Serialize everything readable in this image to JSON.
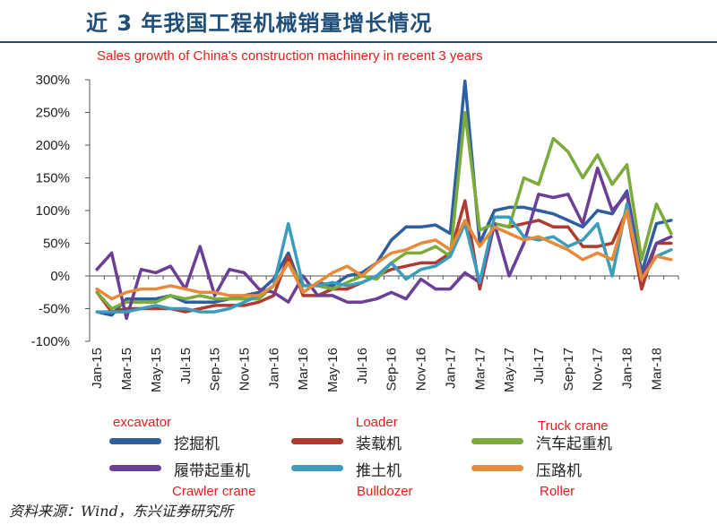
{
  "title": "近 3 年我国工程机械销量增长情况",
  "source": "资料来源：Wind，东兴证券研究所",
  "chart_data": {
    "type": "line",
    "subtitle": "Sales growth of China's construction machinery in recent 3 years",
    "ylim": [
      -100,
      300
    ],
    "yticks": [
      "-100%",
      "-50%",
      "0%",
      "50%",
      "100%",
      "150%",
      "200%",
      "250%",
      "300%"
    ],
    "ytick_values": [
      -100,
      -50,
      0,
      50,
      100,
      150,
      200,
      250,
      300
    ],
    "x": [
      "Jan-15",
      "Feb-15",
      "Mar-15",
      "Apr-15",
      "May-15",
      "Jun-15",
      "Jul-15",
      "Aug-15",
      "Sep-15",
      "Oct-15",
      "Nov-15",
      "Dec-15",
      "Jan-16",
      "Feb-16",
      "Mar-16",
      "Apr-16",
      "May-16",
      "Jun-16",
      "Jul-16",
      "Aug-16",
      "Sep-16",
      "Oct-16",
      "Nov-16",
      "Dec-16",
      "Jan-17",
      "Feb-17",
      "Mar-17",
      "Apr-17",
      "May-17",
      "Jun-17",
      "Jul-17",
      "Aug-17",
      "Sep-17",
      "Oct-17",
      "Nov-17",
      "Dec-17",
      "Jan-18",
      "Feb-18",
      "Mar-18",
      "Apr-18"
    ],
    "xtick_labels": [
      "Jan-15",
      "Mar-15",
      "May-15",
      "Jul-15",
      "Sep-15",
      "Nov-15",
      "Jan-16",
      "Mar-16",
      "May-16",
      "Jul-16",
      "Sep-16",
      "Nov-16",
      "Jan-17",
      "Mar-17",
      "May-17",
      "Jul-17",
      "Sep-17",
      "Nov-17",
      "Jan-18",
      "Mar-18"
    ],
    "legend_position": "bottom",
    "grid": false,
    "series": [
      {
        "name": "挖掘机",
        "name_en": "excavator",
        "color": "#2e5f9e",
        "values": [
          -55,
          -60,
          -35,
          -35,
          -35,
          -30,
          -40,
          -40,
          -40,
          -35,
          -30,
          -25,
          -5,
          35,
          -25,
          -10,
          -15,
          0,
          5,
          20,
          55,
          75,
          75,
          78,
          65,
          298,
          50,
          100,
          105,
          105,
          100,
          95,
          85,
          75,
          100,
          95,
          130,
          5,
          80,
          85
        ]
      },
      {
        "name": "装载机",
        "name_en": "Loader",
        "color": "#b03a2e",
        "values": [
          -25,
          -55,
          -50,
          -50,
          -50,
          -50,
          -55,
          -50,
          -45,
          -45,
          -45,
          -40,
          -30,
          30,
          -30,
          -30,
          -20,
          -20,
          -10,
          0,
          10,
          15,
          20,
          20,
          35,
          115,
          -20,
          80,
          75,
          80,
          85,
          75,
          75,
          45,
          45,
          50,
          100,
          -20,
          50,
          50
        ]
      },
      {
        "name": "汽车起重机",
        "name_en": "Truck crane",
        "color": "#7bab3b",
        "values": [
          -25,
          -50,
          -40,
          -40,
          -40,
          -30,
          -35,
          -30,
          -35,
          -35,
          -35,
          -35,
          -15,
          20,
          -15,
          -15,
          -20,
          -10,
          0,
          -5,
          20,
          35,
          35,
          45,
          30,
          250,
          70,
          80,
          75,
          150,
          140,
          210,
          190,
          150,
          185,
          140,
          170,
          25,
          110,
          65
        ]
      },
      {
        "name": "履带起重机",
        "name_en": "Crawler crane",
        "color": "#6b3f96",
        "values": [
          10,
          35,
          -65,
          10,
          5,
          15,
          -20,
          45,
          -30,
          10,
          5,
          -20,
          -25,
          -40,
          0,
          -30,
          -30,
          -40,
          -40,
          -35,
          -25,
          -35,
          -5,
          -20,
          -20,
          5,
          -10,
          80,
          0,
          50,
          125,
          120,
          125,
          80,
          165,
          100,
          125,
          -5,
          50,
          60
        ]
      },
      {
        "name": "推土机",
        "name_en": "Bulldozer",
        "color": "#3a9dbd",
        "values": [
          -55,
          -55,
          -55,
          -50,
          -45,
          -50,
          -50,
          -55,
          -55,
          -50,
          -40,
          -30,
          -15,
          80,
          -15,
          -15,
          -10,
          -15,
          -10,
          0,
          20,
          -5,
          10,
          15,
          30,
          80,
          -10,
          90,
          90,
          60,
          55,
          60,
          45,
          55,
          80,
          0,
          110,
          -5,
          30,
          40
        ]
      },
      {
        "name": "压路机",
        "name_en": "Roller",
        "color": "#e88a3a",
        "values": [
          -20,
          -35,
          -25,
          -20,
          -20,
          -15,
          -20,
          -25,
          -25,
          -30,
          -30,
          -30,
          -15,
          20,
          -25,
          -10,
          5,
          15,
          0,
          20,
          35,
          40,
          50,
          55,
          40,
          85,
          45,
          75,
          65,
          55,
          60,
          50,
          40,
          25,
          35,
          25,
          100,
          -5,
          30,
          25
        ]
      }
    ]
  }
}
